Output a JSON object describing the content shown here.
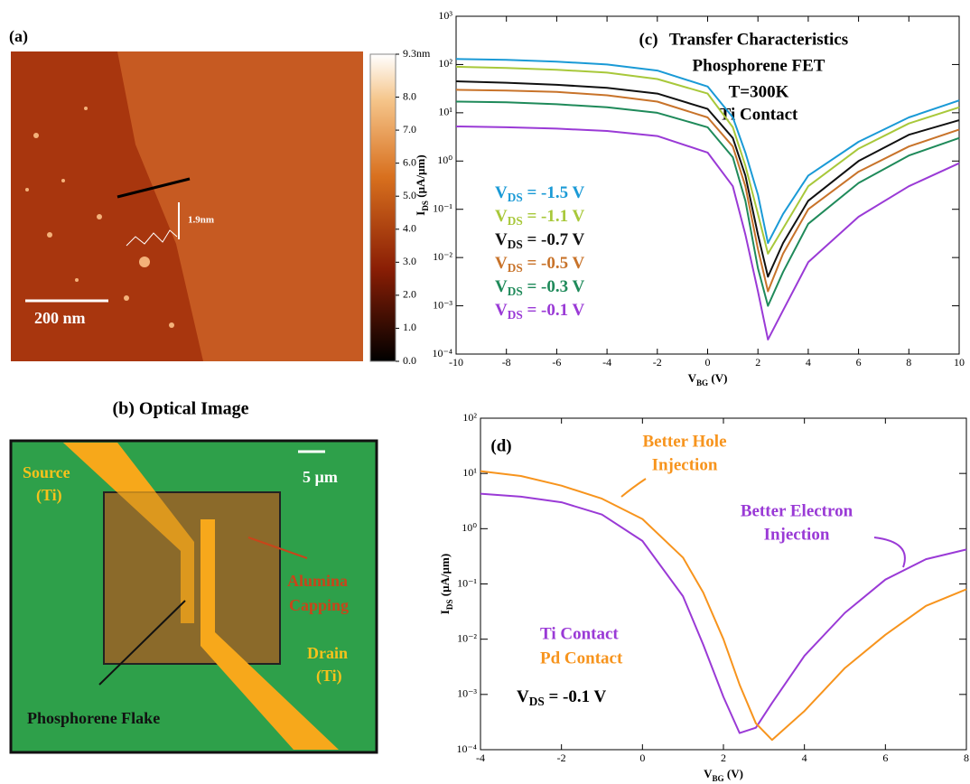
{
  "afm": {
    "panel_label": "(a)",
    "scale_bar": "200 nm",
    "step_height": "1.9nm",
    "colorbar_lim": [
      0,
      9.3
    ],
    "colorbar_ticks": [
      {
        "value": 0,
        "label": "0.0"
      },
      {
        "value": 1,
        "label": "1.0"
      },
      {
        "value": 2,
        "label": "2.0"
      },
      {
        "value": 3,
        "label": "3.0"
      },
      {
        "value": 4,
        "label": "4.0"
      },
      {
        "value": 5,
        "label": "5.0"
      },
      {
        "value": 6,
        "label": "6.0"
      },
      {
        "value": 7,
        "label": "7.0"
      },
      {
        "value": 8,
        "label": "8.0"
      },
      {
        "value": 9.3,
        "label": "9.3nm"
      }
    ]
  },
  "optical": {
    "title": "(b) Optical Image",
    "scale_bar": "5 µm",
    "source": [
      "Source",
      "(Ti)"
    ],
    "drain": [
      "Drain",
      "(Ti)"
    ],
    "capping": [
      "Alumina",
      "Capping"
    ],
    "flake": "Phosphorene Flake"
  },
  "chart_data": [
    {
      "type": "line",
      "panel_label": "(c)",
      "annotations": [
        "Transfer Characteristics",
        "Phosphorene FET",
        "T=300K",
        "Ti Contact"
      ],
      "x_label": "VBG (V)",
      "y_label": "IDS (µA/µm)",
      "log_y": true,
      "xlim": [
        -10,
        10
      ],
      "xticks": [
        -10,
        -8,
        -6,
        -4,
        -2,
        0,
        2,
        4,
        6,
        8,
        10
      ],
      "ylim": [
        0.0001,
        1000
      ],
      "yticks": [
        {
          "value": 0.0001,
          "label": "10⁻⁴"
        },
        {
          "value": 0.001,
          "label": "10⁻³"
        },
        {
          "value": 0.01,
          "label": "10⁻²"
        },
        {
          "value": 0.1,
          "label": "10⁻¹"
        },
        {
          "value": 1,
          "label": "10⁰"
        },
        {
          "value": 10,
          "label": "10¹"
        },
        {
          "value": 100,
          "label": "10²"
        },
        {
          "value": 1000,
          "label": "10³"
        }
      ],
      "x": [
        -10,
        -8,
        -6,
        -4,
        -2,
        0,
        1,
        1.5,
        2,
        2.4,
        3,
        4,
        6,
        8,
        10
      ],
      "series": [
        {
          "name": "VDS = -1.5 V",
          "color": "#1a9ad6",
          "values": [
            130,
            125,
            115,
            100,
            75,
            35,
            8,
            1.5,
            0.2,
            0.02,
            0.08,
            0.5,
            2.5,
            8,
            18
          ]
        },
        {
          "name": "VDS = -1.1 V",
          "color": "#a8c83a",
          "values": [
            90,
            85,
            78,
            68,
            50,
            25,
            5,
            0.8,
            0.08,
            0.012,
            0.04,
            0.3,
            1.8,
            6,
            13
          ]
        },
        {
          "name": "VDS = -0.7 V",
          "color": "#111111",
          "values": [
            45,
            42,
            38,
            33,
            25,
            12,
            3,
            0.5,
            0.03,
            0.004,
            0.02,
            0.15,
            1,
            3.5,
            7
          ]
        },
        {
          "name": "VDS = -0.5 V",
          "color": "#c8732a",
          "values": [
            30,
            29,
            27,
            23,
            17,
            8,
            2,
            0.3,
            0.015,
            0.002,
            0.012,
            0.1,
            0.6,
            2,
            4.5
          ]
        },
        {
          "name": "VDS = -0.3 V",
          "color": "#1f8a5a",
          "values": [
            17,
            16.5,
            15,
            13,
            10,
            5,
            1.2,
            0.15,
            0.006,
            0.001,
            0.005,
            0.05,
            0.35,
            1.3,
            3
          ]
        },
        {
          "name": "VDS = -0.1 V",
          "color": "#9a3ad6",
          "values": [
            5.2,
            5,
            4.7,
            4.2,
            3.3,
            1.5,
            0.3,
            0.03,
            0.002,
            0.0002,
            0.0008,
            0.008,
            0.07,
            0.3,
            0.9
          ]
        }
      ]
    },
    {
      "type": "line",
      "panel_label": "(d)",
      "annotations": [
        "Better Hole",
        "Injection",
        "Better Electron",
        "Injection",
        "VDS = -0.1 V"
      ],
      "x_label": "VBG (V)",
      "y_label": "IDS (µA/µm)",
      "log_y": true,
      "xlim": [
        -4,
        8
      ],
      "xticks": [
        -4,
        -2,
        0,
        2,
        4,
        6,
        8
      ],
      "ylim": [
        0.0001,
        100
      ],
      "yticks": [
        {
          "value": 0.0001,
          "label": "10⁻⁴"
        },
        {
          "value": 0.001,
          "label": "10⁻³"
        },
        {
          "value": 0.01,
          "label": "10⁻²"
        },
        {
          "value": 0.1,
          "label": "10⁻¹"
        },
        {
          "value": 1,
          "label": "10⁰"
        },
        {
          "value": 10,
          "label": "10¹"
        },
        {
          "value": 100,
          "label": "10²"
        }
      ],
      "x": [
        -4,
        -3,
        -2,
        -1,
        0,
        1,
        1.5,
        2,
        2.4,
        2.8,
        3.2,
        4,
        5,
        6,
        7,
        8
      ],
      "series": [
        {
          "name": "Ti Contact",
          "color": "#9a3ad6",
          "values": [
            4.3,
            3.8,
            3,
            1.8,
            0.6,
            0.06,
            0.008,
            0.0009,
            0.0002,
            0.00025,
            0.0007,
            0.005,
            0.03,
            0.12,
            0.28,
            0.42
          ]
        },
        {
          "name": "Pd Contact",
          "color": "#f7941d",
          "values": [
            11,
            9,
            6,
            3.5,
            1.5,
            0.3,
            0.07,
            0.01,
            0.0015,
            0.0003,
            0.00015,
            0.0005,
            0.003,
            0.012,
            0.04,
            0.08
          ]
        }
      ]
    }
  ]
}
